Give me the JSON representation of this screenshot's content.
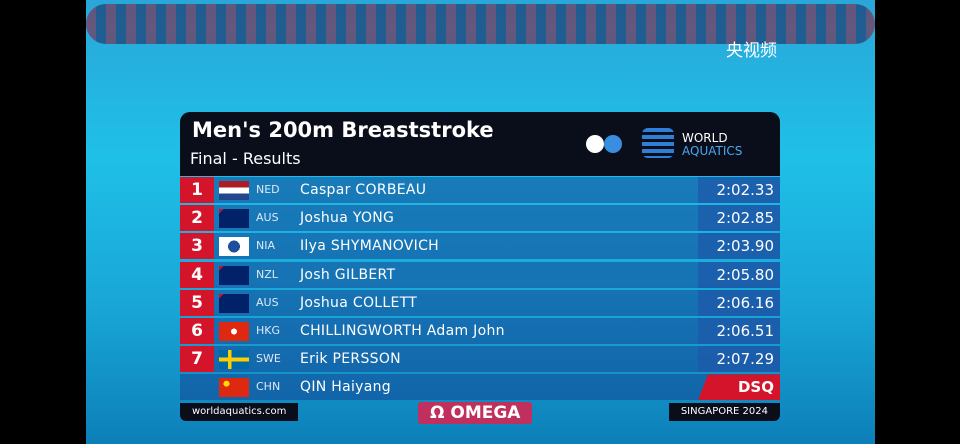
{
  "broadcaster": "央视频",
  "header": {
    "title": "Men's 200m Breaststroke",
    "subtitle": "Final - Results",
    "logo_line1": "WORLD",
    "logo_line2": "AQUATICS"
  },
  "table": {
    "rows": [
      {
        "rank": "1",
        "country": "NED",
        "name": "Caspar CORBEAU",
        "time": "2:02.33"
      },
      {
        "rank": "2",
        "country": "AUS",
        "name": "Joshua YONG",
        "time": "2:02.85"
      },
      {
        "rank": "3",
        "country": "NIA",
        "name": "Ilya SHYMANOVICH",
        "time": "2:03.90"
      },
      {
        "rank": "4",
        "country": "NZL",
        "name": "Josh GILBERT",
        "time": "2:05.80"
      },
      {
        "rank": "5",
        "country": "AUS",
        "name": "Joshua COLLETT",
        "time": "2:06.16"
      },
      {
        "rank": "6",
        "country": "HKG",
        "name": "CHILLINGWORTH Adam John",
        "time": "2:06.51"
      },
      {
        "rank": "7",
        "country": "SWE",
        "name": "Erik PERSSON",
        "time": "2:07.29"
      },
      {
        "country": "CHN",
        "name": "QIN Haiyang",
        "time": "DSQ"
      }
    ]
  },
  "footer": {
    "website": "worldaquatics.com",
    "sponsor": "Ω OMEGA",
    "event": "SINGAPORE 2024"
  }
}
